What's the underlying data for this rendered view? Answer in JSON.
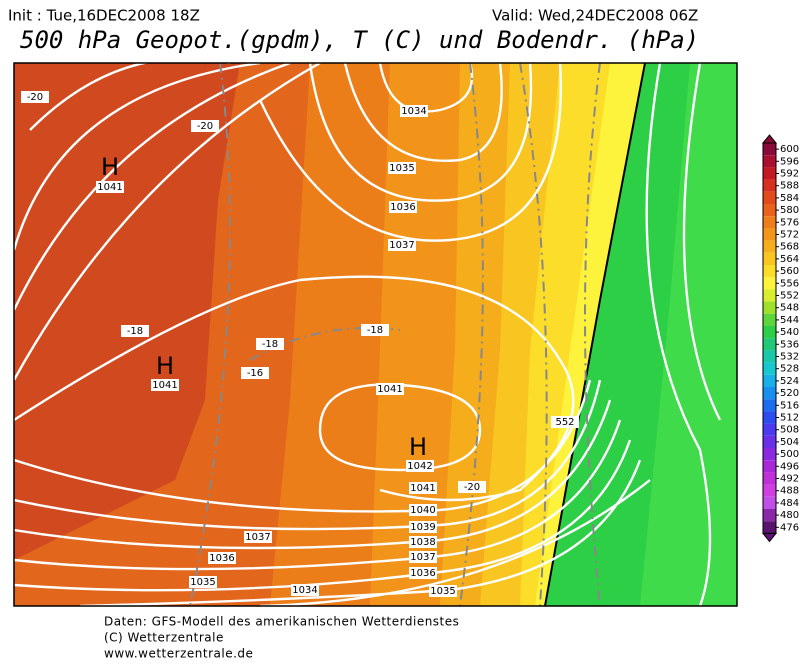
{
  "header": {
    "init": "Init : Tue,16DEC2008 18Z",
    "valid": "Valid: Wed,24DEC2008 06Z",
    "title": "500 hPa Geopot.(gpdm), T (C) und Bodendr. (hPa)"
  },
  "map": {
    "labels": [
      "-20",
      "-20",
      "H",
      "1041",
      "1034",
      "1035",
      "1036",
      "1037",
      "-18",
      "-18",
      "-16",
      "-18",
      "H",
      "1041",
      "1041",
      "H",
      "1042",
      "1041",
      "-20",
      "1040",
      "1039",
      "1038",
      "1037",
      "1036",
      "1035",
      "1037",
      "1036",
      "1035",
      "1034",
      "552"
    ]
  },
  "colorbar": {
    "labels": [
      600,
      596,
      592,
      588,
      584,
      580,
      576,
      572,
      568,
      564,
      560,
      556,
      552,
      548,
      544,
      540,
      536,
      532,
      528,
      524,
      520,
      516,
      512,
      508,
      504,
      500,
      496,
      492,
      488,
      484,
      480,
      476
    ]
  },
  "footer": {
    "lines": [
      "Daten: GFS-Modell des amerikanischen Wetterdienstes",
      "(C) Wetterzentrale",
      "www.wetterzentrale.de"
    ]
  }
}
